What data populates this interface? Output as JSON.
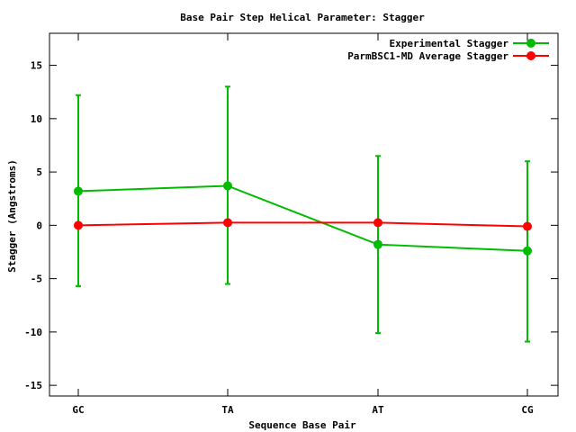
{
  "chart_data": {
    "type": "line",
    "title": "Base Pair Step Helical Parameter: Stagger",
    "xlabel": "Sequence Base Pair",
    "ylabel": "Stagger (Angstroms)",
    "categories": [
      "GC",
      "TA",
      "AT",
      "CG"
    ],
    "ylim": [
      -16,
      18
    ],
    "yticks": [
      -15,
      -10,
      -5,
      0,
      5,
      10,
      15
    ],
    "grid": false,
    "legend_position": "top-right",
    "series": [
      {
        "name": "Experimental Stagger",
        "color": "#00bb00",
        "values": [
          3.2,
          3.7,
          -1.8,
          -2.4
        ],
        "error_low": [
          -5.7,
          -5.5,
          -10.1,
          -10.9
        ],
        "error_high": [
          12.2,
          13.0,
          6.5,
          6.0
        ]
      },
      {
        "name": "ParmBSC1-MD Average Stagger",
        "color": "#ff0000",
        "values": [
          0.0,
          0.25,
          0.25,
          -0.1
        ],
        "error_low": [],
        "error_high": []
      }
    ]
  }
}
